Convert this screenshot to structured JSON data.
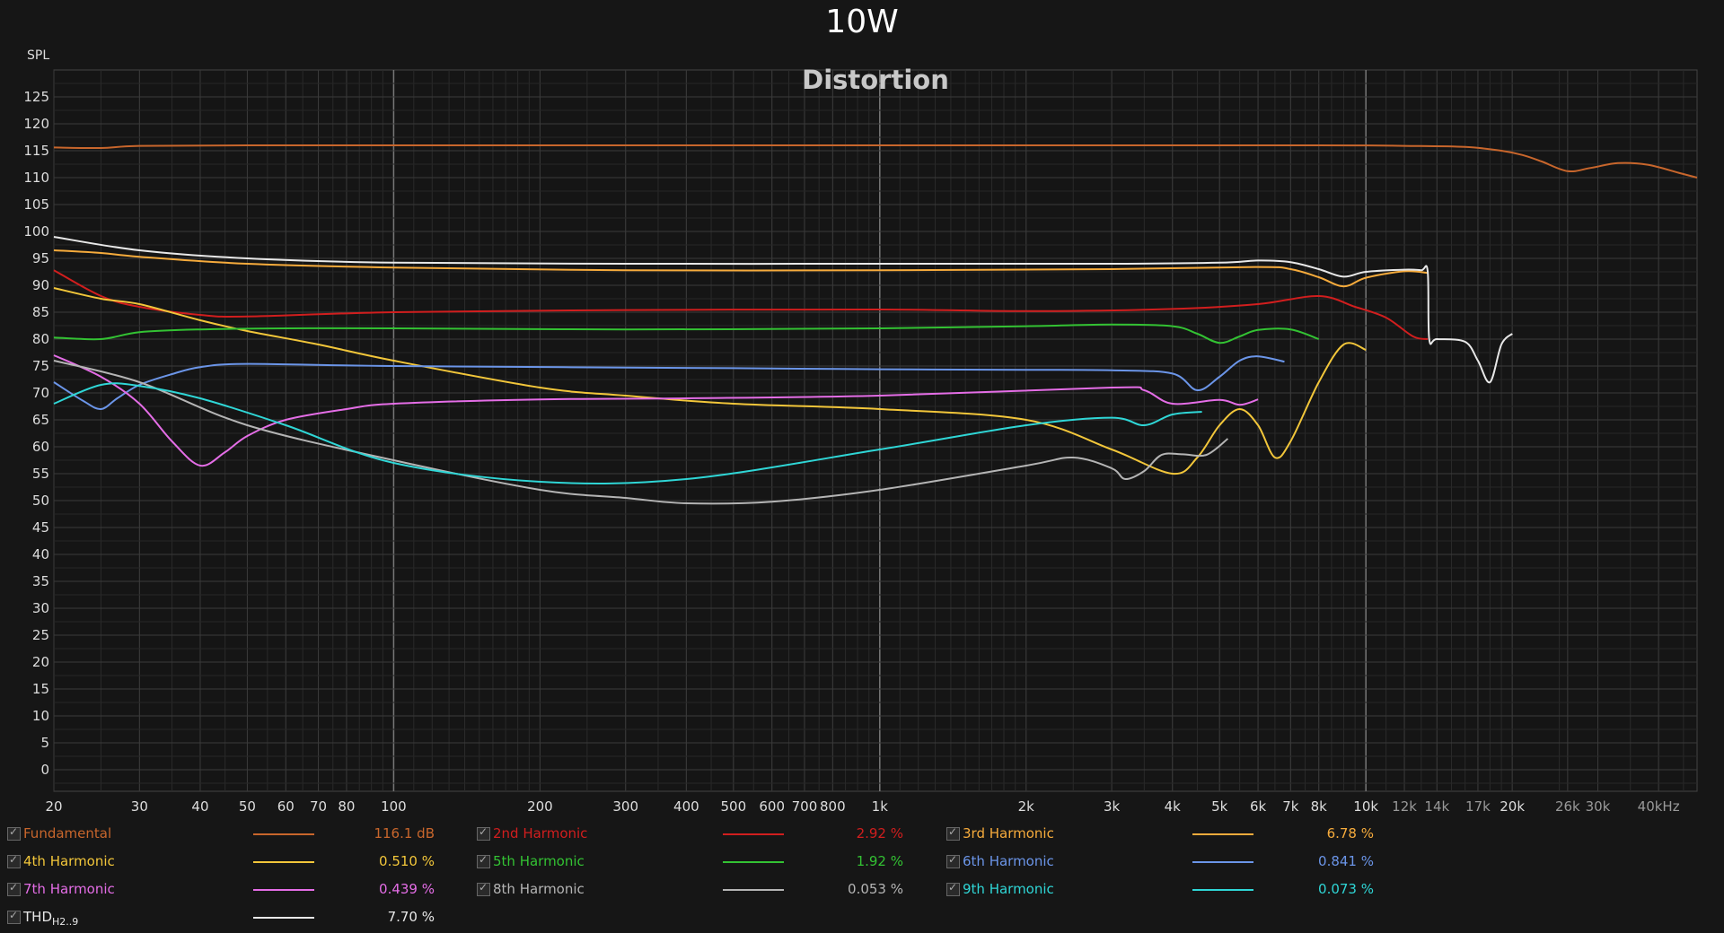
{
  "title": "10W",
  "chart_data": {
    "type": "line",
    "title": "Distortion",
    "ylabel": "SPL",
    "xlabel": "",
    "x_scale": "log",
    "xlim": [
      20,
      48000
    ],
    "ylim": [
      -4,
      130
    ],
    "grid": true,
    "legend_position": "bottom",
    "y_ticks": [
      0,
      5,
      10,
      15,
      20,
      25,
      30,
      35,
      40,
      45,
      50,
      55,
      60,
      65,
      70,
      75,
      80,
      85,
      90,
      95,
      100,
      105,
      110,
      115,
      120,
      125
    ],
    "x_ticks": [
      {
        "v": 20,
        "l": "20"
      },
      {
        "v": 30,
        "l": "30"
      },
      {
        "v": 40,
        "l": "40"
      },
      {
        "v": 50,
        "l": "50"
      },
      {
        "v": 60,
        "l": "60"
      },
      {
        "v": 70,
        "l": "70"
      },
      {
        "v": 80,
        "l": "80"
      },
      {
        "v": 100,
        "l": "100"
      },
      {
        "v": 200,
        "l": "200"
      },
      {
        "v": 300,
        "l": "300"
      },
      {
        "v": 400,
        "l": "400"
      },
      {
        "v": 500,
        "l": "500"
      },
      {
        "v": 600,
        "l": "600"
      },
      {
        "v": 700,
        "l": "700"
      },
      {
        "v": 800,
        "l": "800"
      },
      {
        "v": 1000,
        "l": "1k"
      },
      {
        "v": 2000,
        "l": "2k"
      },
      {
        "v": 3000,
        "l": "3k"
      },
      {
        "v": 4000,
        "l": "4k"
      },
      {
        "v": 5000,
        "l": "5k"
      },
      {
        "v": 6000,
        "l": "6k"
      },
      {
        "v": 7000,
        "l": "7k"
      },
      {
        "v": 8000,
        "l": "8k"
      },
      {
        "v": 10000,
        "l": "10k"
      },
      {
        "v": 12000,
        "l": "12k"
      },
      {
        "v": 14000,
        "l": "14k"
      },
      {
        "v": 17000,
        "l": "17k"
      },
      {
        "v": 20000,
        "l": "20k"
      },
      {
        "v": 26000,
        "l": "26k"
      },
      {
        "v": 30000,
        "l": "30k"
      },
      {
        "v": 40000,
        "l": "40kHz"
      }
    ],
    "series": [
      {
        "name": "Fundamental",
        "color": "#c8662c",
        "legend_value": "116.1 dB",
        "x": [
          20,
          25,
          30,
          50,
          100,
          1000,
          8000,
          12000,
          16000,
          19000,
          21000,
          23000,
          26000,
          29000,
          33000,
          38000,
          44000,
          48000
        ],
        "y": [
          115.6,
          115.5,
          115.9,
          116.0,
          116.0,
          116.0,
          116.0,
          115.9,
          115.7,
          115.0,
          114.2,
          113.0,
          111.2,
          111.8,
          112.7,
          112.4,
          110.9,
          110.0
        ]
      },
      {
        "name": "2nd Harmonic",
        "color": "#d11e1e",
        "legend_value": "2.92 %",
        "x": [
          20,
          25,
          30,
          40,
          50,
          100,
          300,
          1000,
          2000,
          4000,
          6000,
          8000,
          9500,
          11000,
          12500,
          13400
        ],
        "y": [
          92.8,
          88,
          86,
          84.5,
          84.2,
          85,
          85.4,
          85.5,
          85.2,
          85.6,
          86.5,
          88,
          86,
          84,
          80.5,
          80
        ]
      },
      {
        "name": "3rd Harmonic",
        "color": "#f6ab3c",
        "legend_value": "6.78 %",
        "x": [
          20,
          25,
          30,
          50,
          100,
          300,
          1000,
          3000,
          6000,
          7000,
          8000,
          9000,
          10000,
          12000,
          13400
        ],
        "y": [
          96.5,
          96,
          95.3,
          94,
          93.3,
          92.8,
          92.8,
          93,
          93.4,
          93,
          91.5,
          89.8,
          91.4,
          92.6,
          92.3
        ]
      },
      {
        "name": "4th Harmonic",
        "color": "#f2c63a",
        "legend_value": "0.510 %",
        "x": [
          20,
          25,
          30,
          40,
          50,
          70,
          100,
          200,
          300,
          500,
          1000,
          2000,
          3000,
          4000,
          4500,
          5000,
          5500,
          6000,
          6500,
          7000,
          8000,
          9000,
          10000
        ],
        "y": [
          89.5,
          87.5,
          86.5,
          83.5,
          81.5,
          79,
          76,
          71,
          69.5,
          68,
          67,
          65,
          59.5,
          55,
          58,
          64,
          67,
          64,
          58,
          61,
          72,
          79,
          78
        ]
      },
      {
        "name": "5th Harmonic",
        "color": "#33c233",
        "legend_value": "1.92 %",
        "x": [
          20,
          25,
          30,
          40,
          60,
          100,
          300,
          1000,
          2000,
          3000,
          4000,
          4500,
          5000,
          5500,
          6000,
          7000,
          8000
        ],
        "y": [
          80.3,
          80,
          81.3,
          81.8,
          82,
          82,
          81.8,
          82,
          82.4,
          82.7,
          82.4,
          81,
          79.3,
          80.5,
          81.7,
          81.8,
          80
        ]
      },
      {
        "name": "6th Harmonic",
        "color": "#6b95e8",
        "legend_value": "0.841 %",
        "x": [
          20,
          23,
          25,
          27,
          30,
          35,
          40,
          50,
          100,
          500,
          1000,
          2000,
          3000,
          4000,
          4500,
          5000,
          5500,
          6000,
          6800
        ],
        "y": [
          72,
          68.5,
          67,
          69,
          71.5,
          73.5,
          74.8,
          75.4,
          75,
          74.6,
          74.4,
          74.3,
          74.2,
          73.6,
          70.5,
          73,
          76,
          76.8,
          75.8
        ]
      },
      {
        "name": "7th Harmonic",
        "color": "#e46de6",
        "legend_value": "0.439 %",
        "x": [
          20,
          25,
          30,
          35,
          40,
          45,
          50,
          60,
          80,
          100,
          200,
          400,
          1000,
          3000,
          3500,
          4000,
          5000,
          5500,
          6000
        ],
        "y": [
          77,
          73,
          68,
          61,
          56.5,
          59,
          62,
          65,
          67,
          68,
          68.8,
          69,
          69.5,
          71,
          70.5,
          68,
          68.7,
          67.8,
          68.8
        ]
      },
      {
        "name": "8th Harmonic",
        "color": "#b4b4b4",
        "legend_value": "0.053 %",
        "x": [
          20,
          30,
          50,
          100,
          200,
          300,
          400,
          600,
          1000,
          2000,
          2500,
          3000,
          3200,
          3500,
          3800,
          4200,
          4700,
          5200
        ],
        "y": [
          76,
          72,
          64,
          57.5,
          52,
          50.5,
          49.5,
          49.8,
          52,
          56.5,
          58,
          56,
          54,
          55.5,
          58.5,
          58.6,
          58.5,
          61.5
        ]
      },
      {
        "name": "9th Harmonic",
        "color": "#2fd6d6",
        "legend_value": "0.073 %",
        "x": [
          20,
          25,
          30,
          40,
          60,
          100,
          200,
          400,
          1000,
          2000,
          3000,
          3500,
          4000,
          4600
        ],
        "y": [
          68,
          71.5,
          71.3,
          69,
          64,
          57,
          53.5,
          54,
          59.5,
          64,
          65.4,
          64,
          66,
          66.5
        ]
      },
      {
        "name": "THD",
        "name_sub": "H2..9",
        "color": "#e8e8e8",
        "legend_value": "7.70 %",
        "x": [
          20,
          30,
          50,
          100,
          300,
          1000,
          3000,
          5000,
          6000,
          7000,
          8000,
          9000,
          10000,
          12000,
          13000,
          13400,
          13500,
          14000,
          16000,
          17000,
          18000,
          19000,
          20000
        ],
        "y": [
          99,
          96.5,
          95,
          94.2,
          94,
          94,
          94,
          94.2,
          94.6,
          94.3,
          93,
          91.6,
          92.5,
          92.9,
          92.8,
          92.6,
          80,
          80,
          79.5,
          76,
          72,
          79,
          81
        ]
      }
    ]
  }
}
